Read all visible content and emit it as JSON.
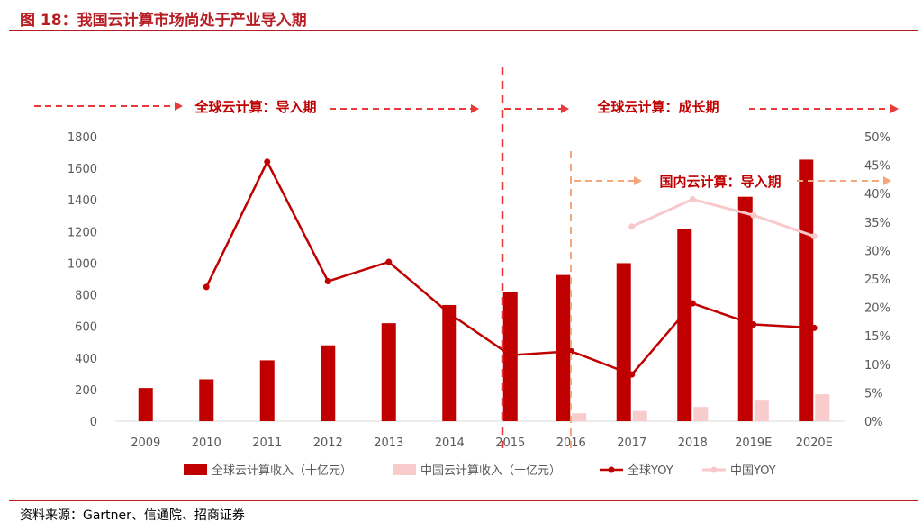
{
  "header": {
    "figure_title": "图 18：我国云计算市场尚处于产业导入期"
  },
  "footer": {
    "source": "资料来源：Gartner、信通院、招商证券"
  },
  "colors": {
    "global_bar": "#c00000",
    "china_bar": "#f8cbcd",
    "global_line": "#c00000",
    "china_line": "#f7c9cb",
    "phase_global": "#e83a3a",
    "phase_china": "#f2a77d",
    "title": "#b81d24"
  },
  "phases": {
    "global_intro": "全球云计算：导入期",
    "global_growth": "全球云计算：成长期",
    "china_intro": "国内云计算：导入期"
  },
  "chart_data": {
    "type": "bar",
    "categories": [
      "2009",
      "2010",
      "2011",
      "2012",
      "2013",
      "2014",
      "2015",
      "2016",
      "2017",
      "2018",
      "2019E",
      "2020E"
    ],
    "y_left": {
      "min": 0,
      "max": 1800,
      "ticks": [
        "0",
        "200",
        "400",
        "600",
        "800",
        "1000",
        "1200",
        "1400",
        "1600",
        "1800"
      ]
    },
    "y_right": {
      "min": 0,
      "max": 50,
      "ticks": [
        "0%",
        "5%",
        "10%",
        "15%",
        "20%",
        "25%",
        "30%",
        "35%",
        "40%",
        "45%",
        "50%"
      ]
    },
    "series": [
      {
        "name": "全球云计算收入（十亿元）",
        "kind": "bar",
        "axis": "left",
        "values": [
          210,
          265,
          385,
          480,
          620,
          735,
          820,
          925,
          1000,
          1215,
          1420,
          1655
        ]
      },
      {
        "name": "中国云计算收入（十亿元）",
        "kind": "bar",
        "axis": "left",
        "values": [
          null,
          null,
          null,
          null,
          null,
          null,
          null,
          50,
          65,
          90,
          130,
          170
        ]
      },
      {
        "name": "全球YOY",
        "kind": "line",
        "axis": "right",
        "values": [
          null,
          23.6,
          45.6,
          24.6,
          28.0,
          18.9,
          11.6,
          12.3,
          8.2,
          20.7,
          17.0,
          16.4
        ]
      },
      {
        "name": "中国YOY",
        "kind": "line",
        "axis": "right",
        "values": [
          null,
          null,
          null,
          null,
          null,
          null,
          null,
          null,
          34.2,
          39.0,
          36.2,
          32.5
        ]
      }
    ],
    "grid": false,
    "legend_position": "bottom"
  }
}
